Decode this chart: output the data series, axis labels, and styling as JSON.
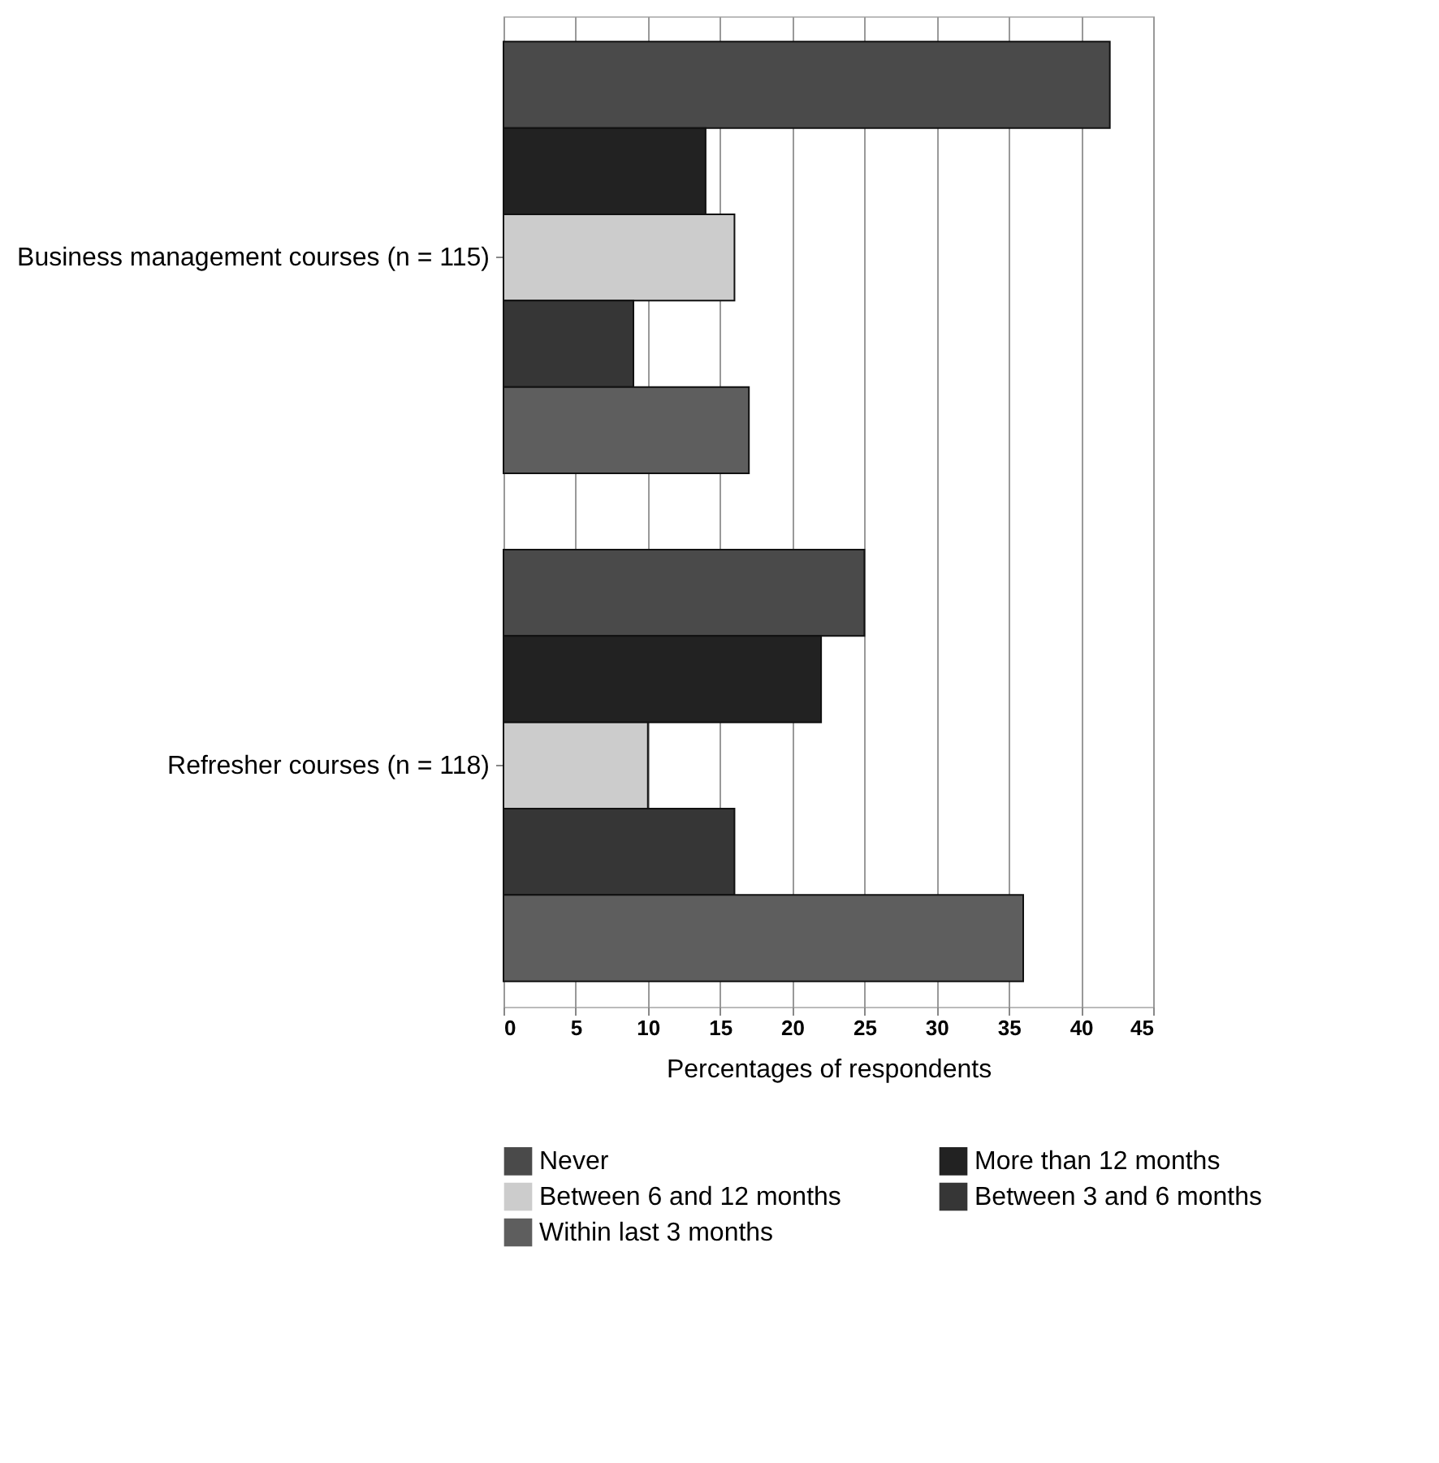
{
  "chart_data": {
    "type": "bar",
    "orientation": "horizontal",
    "categories": [
      "Business management courses (n = 115)",
      "Refresher courses (n = 118)"
    ],
    "series": [
      {
        "name": "Never",
        "color": "#4a4a4a",
        "values": [
          42,
          25
        ]
      },
      {
        "name": "More than 12 months",
        "color": "#222222",
        "values": [
          14,
          22
        ]
      },
      {
        "name": "Between 6 and 12 months",
        "color": "#cccccc",
        "values": [
          16,
          10
        ]
      },
      {
        "name": "Between 3 and 6 months",
        "color": "#363636",
        "values": [
          9,
          16
        ]
      },
      {
        "name": "Within last 3 months",
        "color": "#5e5e5e",
        "values": [
          17,
          36
        ]
      }
    ],
    "xlabel": "Percentages of respondents",
    "xlim": [
      0,
      45
    ],
    "xticks": [
      0,
      5,
      10,
      15,
      20,
      25,
      30,
      35,
      40,
      45
    ],
    "grid": "x",
    "legend": "bottom"
  }
}
